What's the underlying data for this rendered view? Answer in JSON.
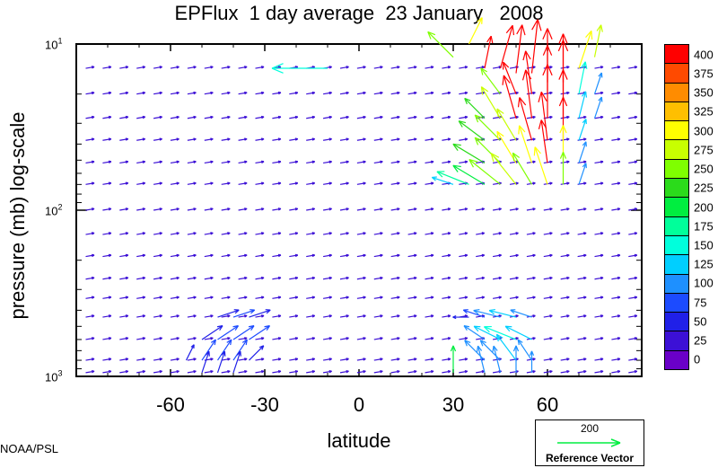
{
  "title": "EPFlux  1 day average  23 January   2008",
  "credit": "NOAA/PSL",
  "reference": {
    "magnitude": "200",
    "label": "Reference Vector"
  },
  "chart_data": {
    "type": "vector-field",
    "title": "EPFlux  1 day average  23 January   2008",
    "xlabel": "latitude",
    "ylabel": "pressure (mb)  log-scale",
    "xlim": [
      -90,
      90
    ],
    "ylim": [
      1000,
      10
    ],
    "yscale": "log",
    "x_ticks": [
      -60,
      -30,
      0,
      30,
      60
    ],
    "x_tick_labels": [
      "-60",
      "-30",
      "0",
      "30",
      "60"
    ],
    "y_ticks": [
      {
        "value": 10,
        "base": "10",
        "exp": "1"
      },
      {
        "value": 100,
        "base": "10",
        "exp": "2"
      },
      {
        "value": 1000,
        "base": "10",
        "exp": "3"
      }
    ],
    "grid": false,
    "colorbar": {
      "levels": [
        "400",
        "375",
        "350",
        "325",
        "300",
        "275",
        "250",
        "225",
        "200",
        "175",
        "150",
        "125",
        "100",
        "75",
        "50",
        "25",
        "0"
      ],
      "colors": [
        "#ff0000",
        "#ff4a00",
        "#ff8c00",
        "#ffbf00",
        "#ffff00",
        "#c8ff00",
        "#7fff00",
        "#2bdb1b",
        "#00ee40",
        "#00ff9a",
        "#00ffdc",
        "#00cfff",
        "#1e90ff",
        "#1c4bff",
        "#2020e8",
        "#3c10d6",
        "#6a00c8"
      ]
    },
    "vectors": [
      {
        "lat": 30,
        "p": 12,
        "u": -4,
        "v": 4,
        "mag": 250
      },
      {
        "lat": 35,
        "p": 10,
        "u": 2,
        "v": 4,
        "mag": 320
      },
      {
        "lat": 40,
        "p": 14,
        "u": 1,
        "v": 5,
        "mag": 400
      },
      {
        "lat": 45,
        "p": 14,
        "u": 2,
        "v": 7,
        "mag": 400
      },
      {
        "lat": 50,
        "p": 15,
        "u": 1,
        "v": 8,
        "mag": 400
      },
      {
        "lat": 55,
        "p": 15,
        "u": 1,
        "v": 9,
        "mag": 400
      },
      {
        "lat": 60,
        "p": 17,
        "u": 0,
        "v": 9,
        "mag": 400
      },
      {
        "lat": 65,
        "p": 17,
        "u": 0,
        "v": 8,
        "mag": 400
      },
      {
        "lat": 70,
        "p": 14,
        "u": 2,
        "v": 6,
        "mag": 320
      },
      {
        "lat": 75,
        "p": 12,
        "u": 1,
        "v": 5,
        "mag": 280
      },
      {
        "lat": -10,
        "p": 14,
        "u": -12,
        "v": 0,
        "mag": 150
      },
      {
        "lat": 45,
        "p": 20,
        "u": -3,
        "v": 4,
        "mag": 260
      },
      {
        "lat": 50,
        "p": 20,
        "u": -2,
        "v": 5,
        "mag": 400
      },
      {
        "lat": 55,
        "p": 20,
        "u": -1,
        "v": 7,
        "mag": 400
      },
      {
        "lat": 60,
        "p": 20,
        "u": 0,
        "v": 8,
        "mag": 400
      },
      {
        "lat": 65,
        "p": 20,
        "u": 0,
        "v": 9,
        "mag": 400
      },
      {
        "lat": 70,
        "p": 20,
        "u": 1,
        "v": 5,
        "mag": 150
      },
      {
        "lat": 75,
        "p": 20,
        "u": 1,
        "v": 3,
        "mag": 110
      },
      {
        "lat": 40,
        "p": 28,
        "u": -3,
        "v": 3,
        "mag": 230
      },
      {
        "lat": 45,
        "p": 28,
        "u": -3,
        "v": 5,
        "mag": 290
      },
      {
        "lat": 50,
        "p": 28,
        "u": -2,
        "v": 7,
        "mag": 400
      },
      {
        "lat": 55,
        "p": 28,
        "u": -1,
        "v": 8,
        "mag": 400
      },
      {
        "lat": 60,
        "p": 28,
        "u": 0,
        "v": 9,
        "mag": 400
      },
      {
        "lat": 65,
        "p": 28,
        "u": 0,
        "v": 8,
        "mag": 400
      },
      {
        "lat": 70,
        "p": 28,
        "u": 1,
        "v": 4,
        "mag": 140
      },
      {
        "lat": 75,
        "p": 28,
        "u": 1,
        "v": 3,
        "mag": 110
      },
      {
        "lat": 40,
        "p": 38,
        "u": -4,
        "v": 3,
        "mag": 240
      },
      {
        "lat": 45,
        "p": 38,
        "u": -4,
        "v": 4,
        "mag": 260
      },
      {
        "lat": 50,
        "p": 38,
        "u": -3,
        "v": 5,
        "mag": 280
      },
      {
        "lat": 55,
        "p": 38,
        "u": -2,
        "v": 7,
        "mag": 400
      },
      {
        "lat": 60,
        "p": 38,
        "u": -1,
        "v": 8,
        "mag": 400
      },
      {
        "lat": 65,
        "p": 38,
        "u": 0,
        "v": 7,
        "mag": 400
      },
      {
        "lat": 70,
        "p": 38,
        "u": 1,
        "v": 3,
        "mag": 130
      },
      {
        "lat": 40,
        "p": 52,
        "u": -5,
        "v": 3,
        "mag": 230
      },
      {
        "lat": 45,
        "p": 52,
        "u": -4,
        "v": 4,
        "mag": 270
      },
      {
        "lat": 50,
        "p": 52,
        "u": -3,
        "v": 5,
        "mag": 300
      },
      {
        "lat": 55,
        "p": 52,
        "u": -2,
        "v": 6,
        "mag": 320
      },
      {
        "lat": 60,
        "p": 52,
        "u": -1,
        "v": 7,
        "mag": 400
      },
      {
        "lat": 65,
        "p": 52,
        "u": 0,
        "v": 6,
        "mag": 300
      },
      {
        "lat": 70,
        "p": 52,
        "u": 1,
        "v": 3,
        "mag": 120
      },
      {
        "lat": 35,
        "p": 70,
        "u": -5,
        "v": 2,
        "mag": 180
      },
      {
        "lat": 40,
        "p": 70,
        "u": -5,
        "v": 3,
        "mag": 220
      },
      {
        "lat": 45,
        "p": 70,
        "u": -5,
        "v": 4,
        "mag": 250
      },
      {
        "lat": 50,
        "p": 70,
        "u": -4,
        "v": 5,
        "mag": 280
      },
      {
        "lat": 55,
        "p": 70,
        "u": -3,
        "v": 5,
        "mag": 260
      },
      {
        "lat": 60,
        "p": 70,
        "u": -2,
        "v": 6,
        "mag": 320
      },
      {
        "lat": 65,
        "p": 70,
        "u": 0,
        "v": 5,
        "mag": 250
      },
      {
        "lat": 70,
        "p": 70,
        "u": 1,
        "v": 3,
        "mag": 110
      },
      {
        "lat": 30,
        "p": 70,
        "u": -3,
        "v": 1,
        "mag": 140
      },
      {
        "lat": 35,
        "p": 440,
        "u": -2,
        "v": 0,
        "mag": 60
      },
      {
        "lat": 40,
        "p": 440,
        "u": -3,
        "v": 1,
        "mag": 90
      },
      {
        "lat": 45,
        "p": 440,
        "u": -4,
        "v": 1,
        "mag": 120
      },
      {
        "lat": 50,
        "p": 440,
        "u": -4,
        "v": 1,
        "mag": 140
      },
      {
        "lat": 55,
        "p": 440,
        "u": -3,
        "v": 1,
        "mag": 110
      },
      {
        "lat": 40,
        "p": 600,
        "u": -3,
        "v": 2,
        "mag": 110
      },
      {
        "lat": 45,
        "p": 600,
        "u": -4,
        "v": 2,
        "mag": 130
      },
      {
        "lat": 50,
        "p": 600,
        "u": -5,
        "v": 2,
        "mag": 150
      },
      {
        "lat": 55,
        "p": 600,
        "u": -4,
        "v": 2,
        "mag": 130
      },
      {
        "lat": 40,
        "p": 800,
        "u": -3,
        "v": 3,
        "mag": 110
      },
      {
        "lat": 45,
        "p": 800,
        "u": -3,
        "v": 3,
        "mag": 120
      },
      {
        "lat": 50,
        "p": 800,
        "u": -3,
        "v": 4,
        "mag": 130
      },
      {
        "lat": 55,
        "p": 800,
        "u": -2,
        "v": 3,
        "mag": 100
      },
      {
        "lat": 30,
        "p": 950,
        "u": 0,
        "v": 4,
        "mag": 200
      },
      {
        "lat": 40,
        "p": 950,
        "u": -1,
        "v": 4,
        "mag": 110
      },
      {
        "lat": 45,
        "p": 950,
        "u": -1,
        "v": 4,
        "mag": 110
      },
      {
        "lat": 50,
        "p": 950,
        "u": 0,
        "v": 4,
        "mag": 120
      },
      {
        "lat": 55,
        "p": 950,
        "u": 0,
        "v": 3,
        "mag": 100
      },
      {
        "lat": -45,
        "p": 440,
        "u": 3,
        "v": 1,
        "mag": 70
      },
      {
        "lat": -40,
        "p": 440,
        "u": 3,
        "v": 1,
        "mag": 75
      },
      {
        "lat": -35,
        "p": 440,
        "u": 3,
        "v": 1,
        "mag": 70
      },
      {
        "lat": -50,
        "p": 600,
        "u": 3,
        "v": 2,
        "mag": 70
      },
      {
        "lat": -45,
        "p": 600,
        "u": 3,
        "v": 2,
        "mag": 75
      },
      {
        "lat": -40,
        "p": 600,
        "u": 3,
        "v": 2,
        "mag": 80
      },
      {
        "lat": -35,
        "p": 600,
        "u": 3,
        "v": 2,
        "mag": 75
      },
      {
        "lat": -50,
        "p": 800,
        "u": 2,
        "v": 3,
        "mag": 75
      },
      {
        "lat": -45,
        "p": 800,
        "u": 2,
        "v": 3,
        "mag": 80
      },
      {
        "lat": -40,
        "p": 800,
        "u": 2,
        "v": 3,
        "mag": 80
      },
      {
        "lat": -35,
        "p": 800,
        "u": 2,
        "v": 2,
        "mag": 70
      },
      {
        "lat": -55,
        "p": 800,
        "u": 1,
        "v": 2,
        "mag": 60
      },
      {
        "lat": -50,
        "p": 950,
        "u": 1,
        "v": 3,
        "mag": 70
      },
      {
        "lat": -45,
        "p": 950,
        "u": 1,
        "v": 3,
        "mag": 70
      },
      {
        "lat": -40,
        "p": 950,
        "u": 1,
        "v": 3,
        "mag": 70
      }
    ]
  }
}
